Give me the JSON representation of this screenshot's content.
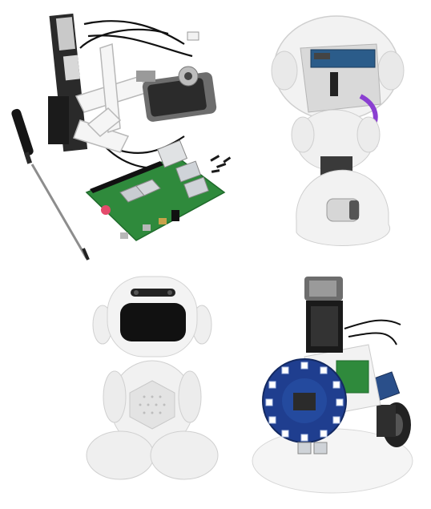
{
  "figure": {
    "panels": [
      {
        "subject": "disassembled-electronics-raspberry-pi-servo-screwdriver"
      },
      {
        "subject": "open-robot-head-and-body-shell"
      },
      {
        "subject": "assembled-white-robot-with-screen-face"
      },
      {
        "subject": "robot-internal-frame-with-led-ring-and-wheels"
      }
    ],
    "colors": {
      "pcb_green": "#2f8a3c",
      "white_plastic": "#f0f0f0",
      "servo_gray": "#6d6d6d",
      "screen_black": "#111111",
      "led_ring_blue": "#1f3e8f",
      "cable_purple": "#8a3fd1"
    }
  }
}
